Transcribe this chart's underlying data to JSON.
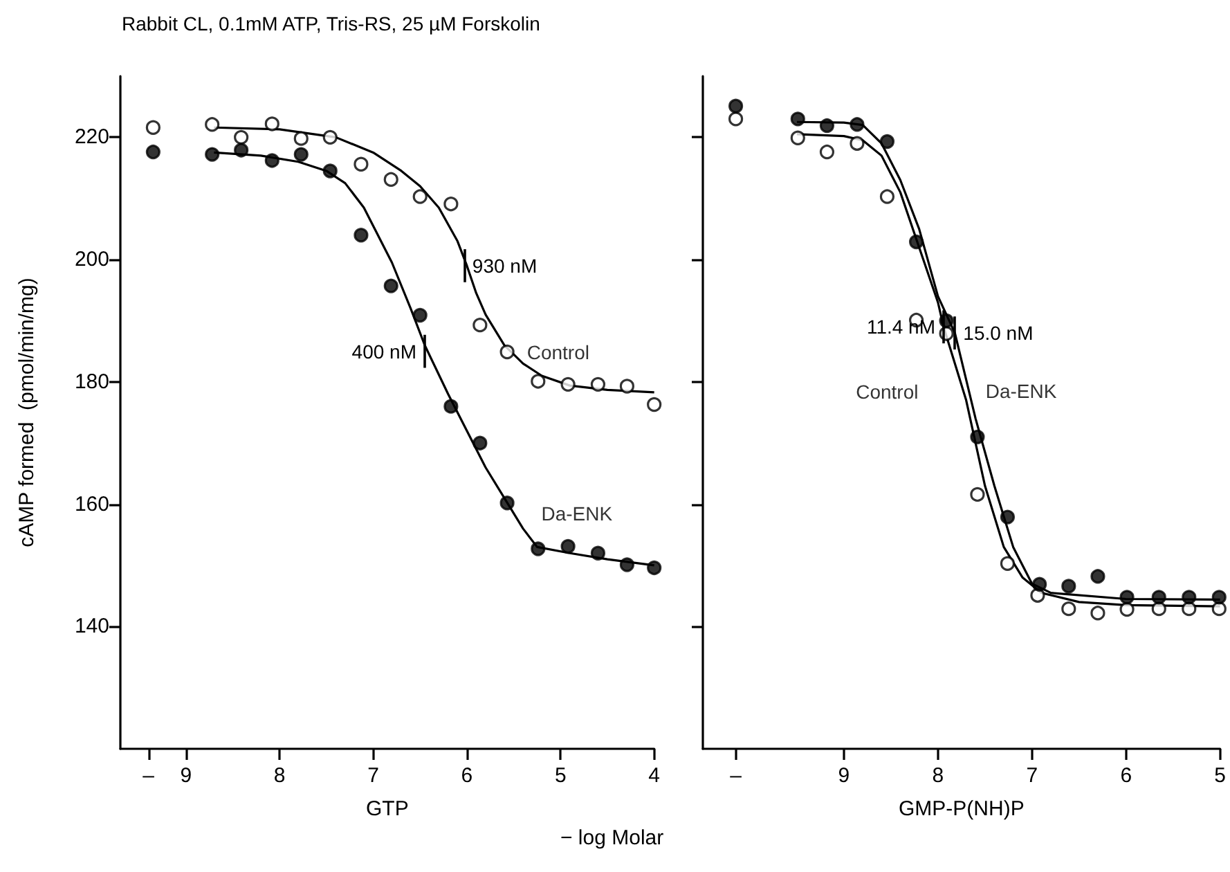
{
  "chart_data": [
    {
      "type": "scatter",
      "title": "Rabbit CL, 0.1mM ATP, Tris-RS, 25 µM Forskolin",
      "xlabel": "GTP",
      "ylabel": "cAMP formed  (pmol/min/mg)",
      "annotations": [
        {
          "text": "930 nM",
          "x": 6.03,
          "y": 199
        },
        {
          "text": "400 nM",
          "x": 6.45,
          "y": 185
        },
        "− log Molar"
      ],
      "xlim": [
        9.7,
        4
      ],
      "xticks": [
        {
          "value": 9.4,
          "label": "–"
        },
        9,
        8,
        7,
        6,
        5,
        4
      ],
      "ylim": [
        120,
        230
      ],
      "yticks": [
        140,
        160,
        180,
        200,
        220
      ],
      "grid": false,
      "legend": false,
      "marker": "circle",
      "series": [
        {
          "name": "Control",
          "color": "#ffffff",
          "x": [
            9.35,
            8.72,
            8.41,
            8.08,
            7.77,
            7.46,
            7.13,
            6.81,
            6.5,
            6.17,
            5.86,
            5.57,
            5.24,
            4.92,
            4.6,
            4.29,
            4.0
          ],
          "values": [
            221.6,
            222.1,
            220,
            222.2,
            219.8,
            220,
            215.6,
            213.1,
            210.3,
            209.1,
            189.3,
            184.9,
            180.1,
            179.6,
            179.6,
            179.3,
            176.3
          ]
        },
        {
          "name": "Da-ENK",
          "color": "#000000",
          "x": [
            9.35,
            8.72,
            8.41,
            8.08,
            7.77,
            7.46,
            7.13,
            6.81,
            6.5,
            6.17,
            5.86,
            5.57,
            5.24,
            4.92,
            4.6,
            4.29,
            4.0
          ],
          "values": [
            217.6,
            217.2,
            217.9,
            216.2,
            217.2,
            214.5,
            204,
            195.7,
            190.9,
            176,
            170,
            160.2,
            152.7,
            153.1,
            152,
            150.1,
            149.6
          ]
        },
        {
          "type": "line",
          "color": "#000000",
          "marker": "none",
          "x": [
            8.7,
            8.0,
            7.4,
            7.0,
            6.7,
            6.5,
            6.3,
            6.1,
            6.0,
            5.9,
            5.8,
            5.6,
            5.4,
            5.2,
            4.9,
            4.5,
            4.0
          ],
          "values": [
            221.6,
            221.3,
            220,
            217.5,
            214.5,
            212,
            208.5,
            203,
            199,
            194.5,
            191,
            186,
            183,
            181,
            179.4,
            178.7,
            178.3
          ]
        },
        {
          "type": "line",
          "color": "#000000",
          "marker": "none",
          "x": [
            8.7,
            8.2,
            7.8,
            7.5,
            7.3,
            7.1,
            7.0,
            6.8,
            6.6,
            6.45,
            6.2,
            6.0,
            5.8,
            5.6,
            5.4,
            5.25,
            4.9,
            4.5,
            4.0
          ],
          "values": [
            217.5,
            217,
            216,
            214.5,
            212.5,
            208.5,
            205.5,
            199.5,
            192,
            186,
            178,
            172,
            166,
            161,
            156,
            153,
            152,
            151,
            150
          ]
        }
      ]
    },
    {
      "type": "scatter",
      "xlabel": "GMP-P(NH)P",
      "tick_labels": "x",
      "annotations": [
        {
          "text": "11.4 nM",
          "x": 7.94,
          "y": 189
        },
        {
          "text": "15.0 nM",
          "x": 7.82,
          "y": 188
        }
      ],
      "xlim": [
        10.5,
        5
      ],
      "xticks": [
        {
          "value": 10.15,
          "label": "–"
        },
        9,
        8,
        7,
        6,
        5
      ],
      "ylim": [
        120,
        230
      ],
      "yticks": [
        140,
        160,
        180,
        200,
        220
      ],
      "grid": false,
      "legend": false,
      "marker": "circle",
      "series": [
        {
          "name": "Control",
          "color": "#ffffff",
          "x": [
            10.15,
            9.49,
            9.18,
            8.86,
            8.54,
            8.23,
            7.91,
            7.58,
            7.26,
            6.94,
            6.61,
            6.3,
            5.99,
            5.65,
            5.33,
            5.01
          ],
          "values": [
            223,
            219.9,
            217.6,
            219,
            210.3,
            190.1,
            187.9,
            161.6,
            150.3,
            145.1,
            142.9,
            142.2,
            142.8,
            142.9,
            142.9,
            142.9
          ]
        },
        {
          "name": "Da-ENK",
          "color": "#000000",
          "x": [
            10.15,
            9.49,
            9.18,
            8.86,
            8.54,
            8.23,
            7.91,
            7.58,
            7.26,
            6.92,
            6.61,
            6.3,
            5.99,
            5.65,
            5.33,
            5.01
          ],
          "values": [
            225.1,
            223,
            221.9,
            222.1,
            219.3,
            202.9,
            190,
            171,
            157.9,
            146.9,
            146.6,
            148.2,
            144.8,
            144.8,
            144.8,
            144.8
          ]
        },
        {
          "type": "line",
          "color": "#000000",
          "marker": "none",
          "x": [
            9.5,
            9.0,
            8.8,
            8.6,
            8.4,
            8.2,
            8.0,
            7.94,
            7.7,
            7.5,
            7.3,
            7.1,
            6.9,
            6.5,
            6.0,
            5.0
          ],
          "values": [
            220.5,
            220.2,
            219.5,
            217,
            211,
            202,
            193,
            189,
            177,
            163,
            153,
            148,
            145.5,
            144,
            143.5,
            143.3
          ]
        },
        {
          "type": "line",
          "color": "#000000",
          "marker": "none",
          "x": [
            9.5,
            9.0,
            8.8,
            8.6,
            8.4,
            8.2,
            8.0,
            7.82,
            7.6,
            7.4,
            7.2,
            7.0,
            6.8,
            6.0,
            5.0
          ],
          "values": [
            222.5,
            222.4,
            222,
            219,
            213,
            205,
            194,
            188,
            174,
            163,
            153,
            147,
            145.5,
            144.5,
            144.4
          ]
        }
      ]
    }
  ]
}
